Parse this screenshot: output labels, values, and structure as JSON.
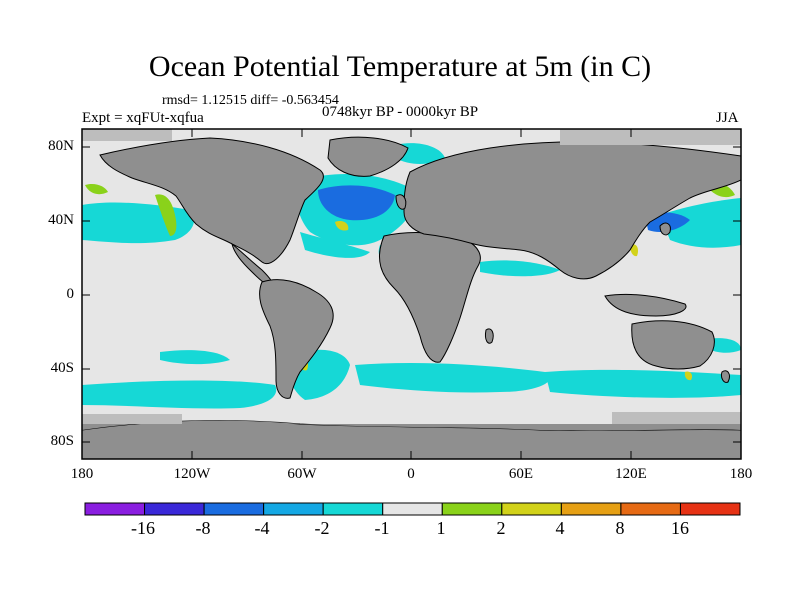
{
  "title": "Ocean Potential Temperature at 5m (in C)",
  "stats": "rmsd= 1.12515 diff= -0.563454",
  "experiment": "Expt = xqFUt-xqfua",
  "period": "0748kyr BP - 0000kyr BP",
  "season": "JJA",
  "y_axis_labels": [
    "80N",
    "40N",
    "0",
    "40S",
    "80S"
  ],
  "x_axis_labels": [
    "180",
    "120W",
    "60W",
    "0",
    "60E",
    "120E",
    "180"
  ],
  "colorbar": {
    "labels": [
      "-16",
      "-8",
      "-4",
      "-2",
      "-1",
      "1",
      "2",
      "4",
      "8",
      "16"
    ],
    "colors": [
      "#8a1ee0",
      "#3a28d8",
      "#1a6ce0",
      "#14a8e4",
      "#16d8d6",
      "#e6e6e6",
      "#8ad21a",
      "#d2d21a",
      "#e6a014",
      "#e66a14",
      "#e63214"
    ]
  },
  "chart_data": {
    "type": "map",
    "variable": "Ocean potential temperature difference at 5m",
    "units": "C",
    "projection": "cylindrical equidistant",
    "lon_range": [
      -180,
      180
    ],
    "lat_range": [
      -90,
      90
    ],
    "levels": [
      -16,
      -8,
      -4,
      -2,
      -1,
      1,
      2,
      4,
      8,
      16
    ],
    "regions": [
      {
        "name": "North Pacific band",
        "class": "-2 to -1"
      },
      {
        "name": "North Atlantic subpolar",
        "class": "-8 to -2"
      },
      {
        "name": "Kuroshio region",
        "class": "-8 to -2"
      },
      {
        "name": "Southern Ocean band",
        "class": "-2 to -1"
      },
      {
        "name": "NE Pacific coast",
        "class": "1 to 4"
      },
      {
        "name": "South Atlantic SW coast",
        "class": "1 to 4"
      }
    ],
    "rmsd": 1.12515,
    "diff": -0.563454
  }
}
